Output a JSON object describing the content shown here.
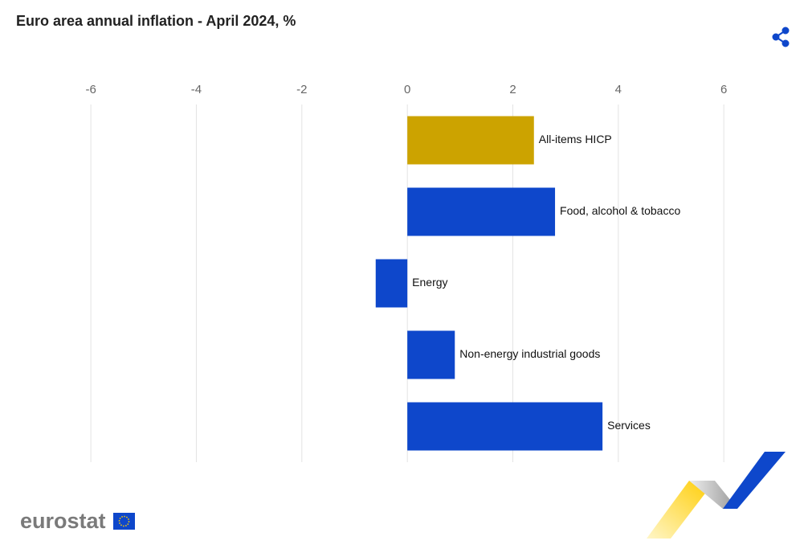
{
  "chart_data": {
    "type": "bar",
    "orientation": "horizontal",
    "title": "Euro area annual inflation - April  2024, %",
    "categories": [
      "All-items HICP",
      "Food, alcohol & tobacco",
      "Energy",
      "Non-energy industrial goods",
      "Services"
    ],
    "values": [
      2.4,
      2.8,
      -0.6,
      0.9,
      3.7
    ],
    "colors": [
      "#cca300",
      "#0e47cb",
      "#0e47cb",
      "#0e47cb",
      "#0e47cb"
    ],
    "xlim": [
      -6.2,
      7.2
    ],
    "xticks": [
      -6,
      -4,
      -2,
      0,
      2,
      4,
      6
    ],
    "grid": true
  },
  "footer": {
    "logo_text": "eurostat"
  }
}
